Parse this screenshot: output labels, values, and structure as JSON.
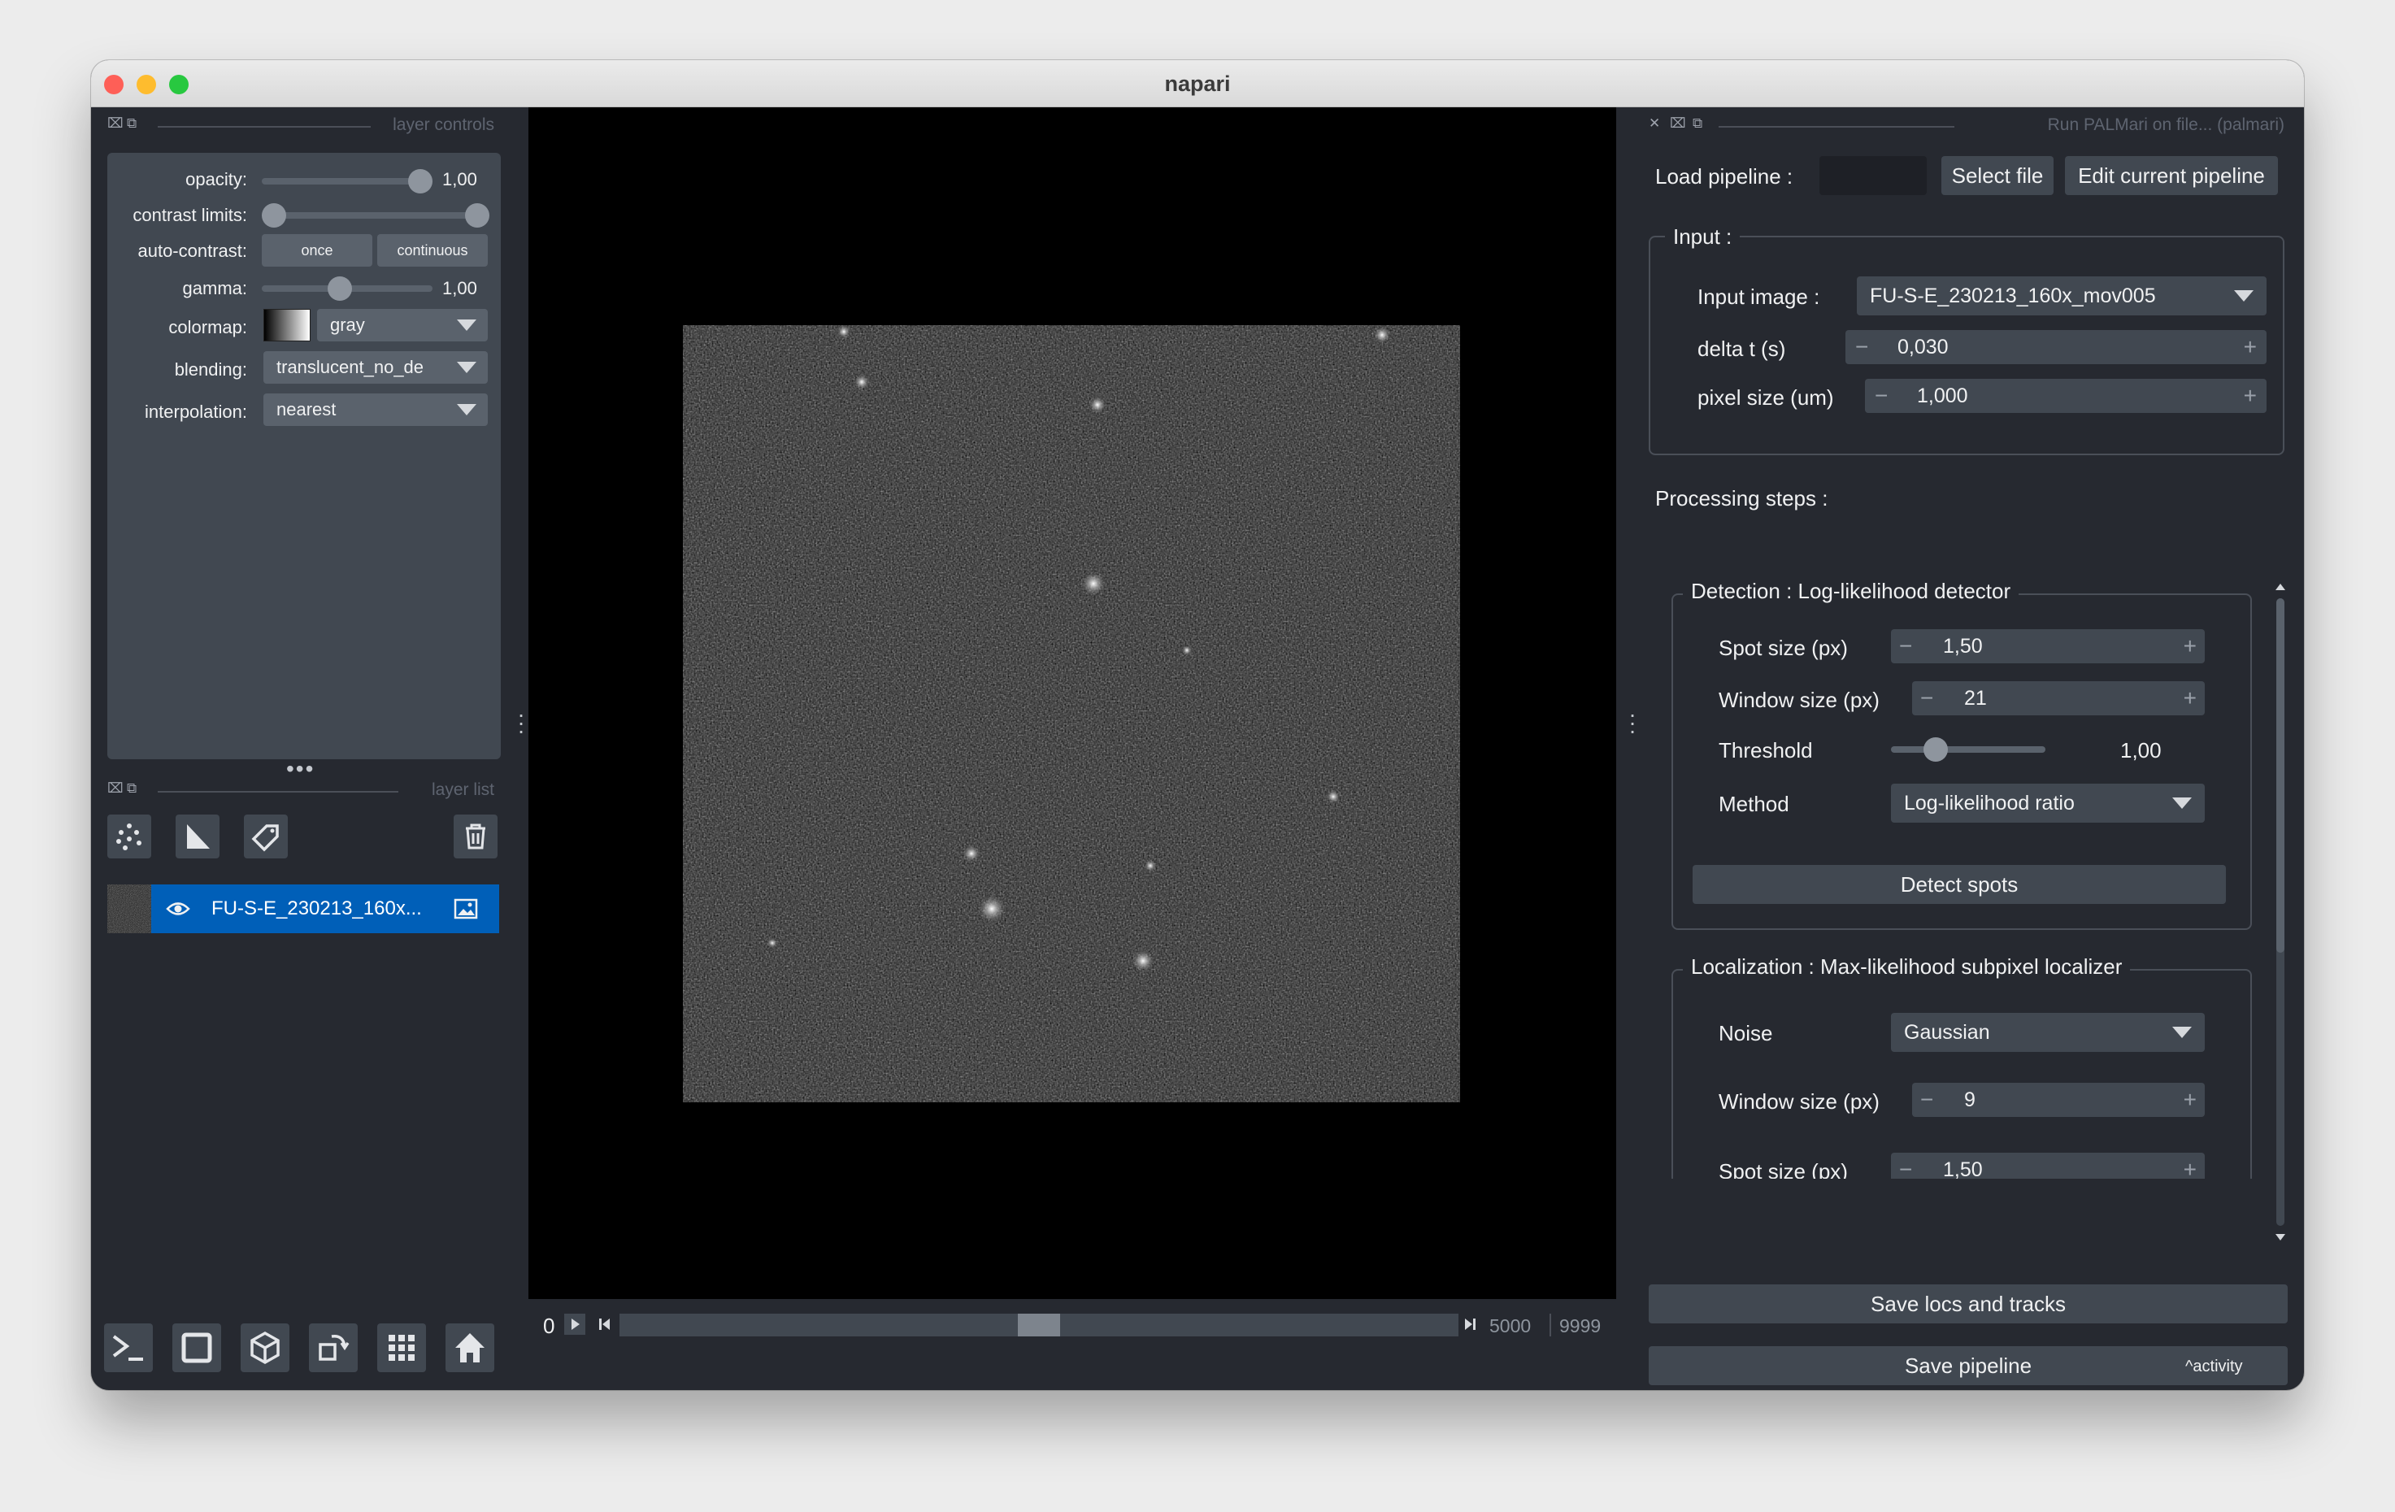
{
  "window": {
    "title": "napari"
  },
  "left_dock": {
    "header": "layer controls",
    "opacity": {
      "label": "opacity:",
      "value": "1,00",
      "level": 1.0
    },
    "contrast_limits": {
      "label": "contrast limits:",
      "low": 0.0,
      "high": 1.0
    },
    "auto_contrast": {
      "label": "auto-contrast:",
      "once": "once",
      "continuous": "continuous"
    },
    "gamma": {
      "label": "gamma:",
      "value": "1,00",
      "level": 0.45
    },
    "colormap": {
      "label": "colormap:",
      "value": "gray"
    },
    "blending": {
      "label": "blending:",
      "value": "translucent_no_de"
    },
    "interpolation": {
      "label": "interpolation:",
      "value": "nearest"
    }
  },
  "layer_list": {
    "header": "layer list",
    "layers": [
      {
        "name": "FU-S-E_230213_160x...",
        "visible": true,
        "type_icon": "image-icon"
      }
    ]
  },
  "bottom_toolbar": {
    "icons": [
      "console-icon",
      "square-icon",
      "cube-icon",
      "rotate-icon",
      "grid-icon",
      "home-icon"
    ]
  },
  "viewer": {
    "slider": {
      "current": "0",
      "position": "5000",
      "max": "9999",
      "fraction": 0.5
    }
  },
  "right_dock": {
    "header": "Run PALMari on file... (palmari)",
    "load_pipeline_label": "Load pipeline :",
    "select_file": "Select file",
    "edit_pipeline": "Edit current pipeline",
    "input": {
      "title": "Input :",
      "image_label": "Input image :",
      "image_value": "FU-S-E_230213_160x_mov005",
      "delta_t_label": "delta t (s)",
      "delta_t_value": "0,030",
      "pixel_label": "pixel size (um)",
      "pixel_value": "1,000"
    },
    "processing_label": "Processing steps :",
    "detection": {
      "title": "Detection : Log-likelihood detector",
      "spot_label": "Spot size (px)",
      "spot_value": "1,50",
      "window_label": "Window size (px)",
      "window_value": "21",
      "threshold_label": "Threshold",
      "threshold_value": "1,00",
      "threshold_level": 0.25,
      "method_label": "Method",
      "method_value": "Log-likelihood ratio",
      "detect_button": "Detect spots"
    },
    "localization": {
      "title": "Localization : Max-likelihood subpixel localizer",
      "noise_label": "Noise",
      "noise_value": "Gaussian",
      "window_label": "Window size (px)",
      "window_value": "9",
      "spot_label": "Spot size (px)",
      "spot_value": "1,50"
    },
    "save_locs": "Save locs and tracks",
    "save_pipeline": "Save pipeline",
    "activity": "activity"
  },
  "colors": {
    "accent": "#005fb8",
    "window_bg": "#262930",
    "panel": "#414851",
    "control": "#5a626c"
  }
}
